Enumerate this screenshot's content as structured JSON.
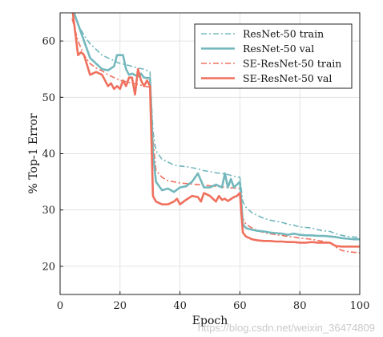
{
  "chart_data": {
    "type": "line",
    "title": "",
    "xlabel": "Epoch",
    "ylabel": "% Top-1 Error",
    "xlim": [
      0,
      100
    ],
    "ylim": [
      15,
      65
    ],
    "xticks": [
      0,
      20,
      40,
      60,
      80,
      100
    ],
    "yticks": [
      20,
      30,
      40,
      50,
      60
    ],
    "grid": true,
    "legend_position": "top-right",
    "series": [
      {
        "name": "ResNet-50 train",
        "color": "#73b8bd",
        "style": "dashdot",
        "x": [
          4,
          6,
          8,
          10,
          12,
          14,
          16,
          18,
          20,
          22,
          24,
          26,
          28,
          30,
          31,
          32,
          34,
          36,
          38,
          40,
          42,
          44,
          46,
          48,
          50,
          52,
          54,
          56,
          58,
          60,
          61,
          62,
          64,
          66,
          68,
          70,
          72,
          74,
          76,
          78,
          80,
          82,
          84,
          86,
          88,
          90,
          92,
          94,
          96,
          98,
          100
        ],
        "y": [
          66,
          63,
          61,
          59.5,
          58.5,
          57.5,
          57,
          56.5,
          56,
          55.8,
          55.5,
          55.2,
          55,
          54.5,
          44,
          40.5,
          39,
          38.5,
          38,
          37.8,
          37.7,
          37.5,
          37.3,
          37,
          36.8,
          36.6,
          36.5,
          36.3,
          36,
          35.8,
          31.5,
          30.5,
          29.5,
          29,
          28.5,
          28.2,
          28,
          27.8,
          27.5,
          27.3,
          27,
          26.9,
          26.8,
          26.5,
          26.3,
          26.2,
          25.8,
          25.5,
          25.3,
          25.2,
          25.1
        ]
      },
      {
        "name": "ResNet-50 val",
        "color": "#73b8bd",
        "style": "solid",
        "x": [
          4,
          6,
          8,
          10,
          12,
          14,
          16,
          18,
          19,
          20,
          21,
          22,
          23,
          24,
          26,
          27,
          28,
          30,
          31,
          32,
          34,
          36,
          38,
          40,
          42,
          44,
          46,
          48,
          50,
          52,
          54,
          55,
          56,
          57,
          58,
          60,
          61,
          62,
          64,
          66,
          68,
          70,
          72,
          74,
          76,
          78,
          80,
          82,
          84,
          86,
          88,
          90,
          92,
          94,
          96,
          98,
          100
        ],
        "y": [
          66,
          63,
          60,
          57,
          56,
          55,
          54.8,
          55.5,
          57.5,
          57.5,
          57.5,
          55,
          54,
          54.2,
          53.7,
          54.2,
          53.5,
          53.4,
          40,
          35,
          33.5,
          33.8,
          33.2,
          34,
          34.2,
          35,
          36.5,
          34,
          34,
          34.5,
          34,
          36.5,
          34,
          35.5,
          34,
          35,
          27.5,
          26.8,
          26.5,
          26.3,
          26.2,
          26,
          25.9,
          25.8,
          25.6,
          25.8,
          25.6,
          25.5,
          25.5,
          25.4,
          25.4,
          25.3,
          25.2,
          25,
          24.9,
          24.8,
          24.8
        ]
      },
      {
        "name": "SE-ResNet-50 train",
        "color": "#f0705e",
        "style": "dashdot",
        "x": [
          4,
          6,
          8,
          10,
          12,
          14,
          16,
          18,
          20,
          22,
          24,
          26,
          28,
          30,
          31,
          32,
          34,
          36,
          38,
          40,
          42,
          44,
          46,
          48,
          50,
          52,
          54,
          56,
          58,
          60,
          61,
          62,
          64,
          66,
          68,
          70,
          72,
          74,
          76,
          78,
          80,
          82,
          84,
          86,
          88,
          90,
          92,
          94,
          96,
          98,
          100
        ],
        "y": [
          64,
          60,
          57.5,
          56,
          55.2,
          54.7,
          54,
          53.5,
          53,
          52.8,
          52.5,
          52.3,
          52,
          51.8,
          42.5,
          37,
          35.8,
          35.2,
          35,
          34.8,
          34.7,
          34.6,
          34.5,
          34.4,
          34.3,
          34.2,
          34.1,
          34,
          33.9,
          33.8,
          28.5,
          27.5,
          26.8,
          26.3,
          26,
          25.8,
          25.6,
          25.5,
          25.3,
          25.2,
          25,
          24.9,
          24.8,
          24.6,
          24.4,
          24.2,
          23.4,
          22.8,
          22.6,
          22.5,
          22.4
        ]
      },
      {
        "name": "SE-ResNet-50 val",
        "color": "#f0705e",
        "style": "solid",
        "x": [
          4,
          6,
          7,
          8,
          10,
          12,
          14,
          16,
          17,
          18,
          19,
          20,
          21,
          22,
          23,
          24,
          25,
          26,
          27,
          28,
          29,
          30,
          31,
          32,
          34,
          36,
          38,
          39,
          40,
          42,
          44,
          46,
          47,
          48,
          50,
          52,
          53,
          54,
          55,
          56,
          58,
          59,
          60,
          61,
          62,
          64,
          66,
          68,
          70,
          72,
          74,
          76,
          78,
          80,
          82,
          84,
          86,
          88,
          90,
          92,
          94,
          96,
          98,
          100
        ],
        "y": [
          66,
          57.5,
          58,
          57.5,
          54,
          54.5,
          54,
          52,
          52.5,
          51.5,
          52,
          51.5,
          53,
          52,
          53.5,
          53.5,
          50.5,
          55,
          53,
          52,
          53,
          52,
          32.5,
          31.5,
          31,
          31,
          31.5,
          32,
          31,
          31.8,
          32.5,
          32.3,
          31.5,
          33,
          32.5,
          31.5,
          32.5,
          31.8,
          32,
          31.6,
          32.3,
          32.5,
          33,
          26,
          25.3,
          24.8,
          24.6,
          24.5,
          24.5,
          24.4,
          24.4,
          24.3,
          24.3,
          24.2,
          24.2,
          24.3,
          24.2,
          24.2,
          24.2,
          23.6,
          23.5,
          23.5,
          23.5,
          23.5
        ]
      }
    ]
  },
  "watermark": "https://blog.csdn.net/weixin_36474809"
}
